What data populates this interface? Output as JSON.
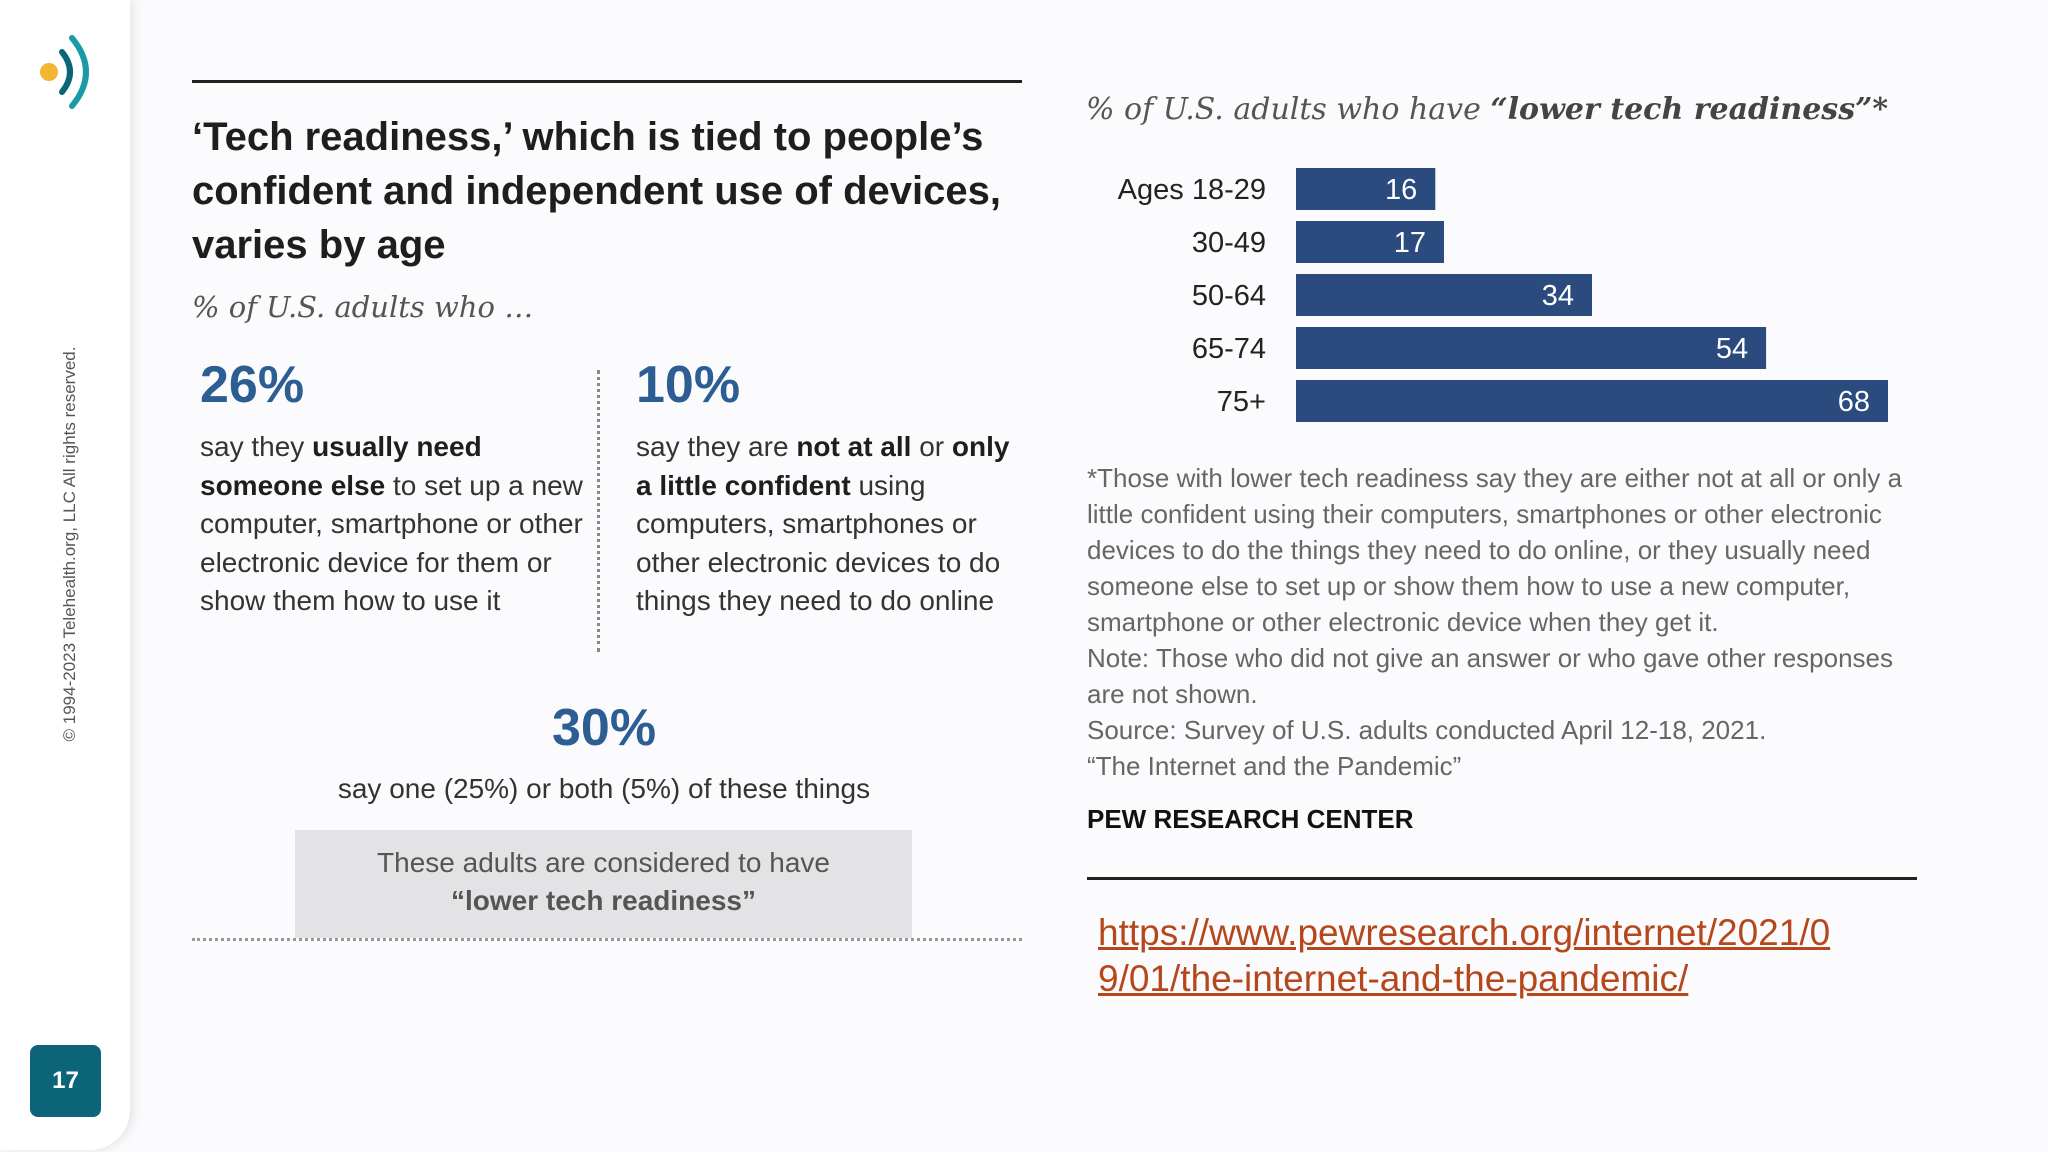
{
  "sidebar": {
    "copyright": "© 1994-2023 Telehealth.org, LLC All rights reserved.",
    "page_number": "17",
    "logo_colors": {
      "dot": "#f2b632",
      "arc1": "#0b6478",
      "arc2": "#1a9aa8"
    }
  },
  "left": {
    "headline": "‘Tech readiness,’ which is tied to people’s confident and independent use of devices, varies by age",
    "subtitle": "% of U.S. adults who …",
    "stat1": {
      "value": "26%",
      "t1": "say they ",
      "b1": "usually need someone else",
      "t2": " to set up a new computer, smartphone or other electronic device for them or show them how to use it"
    },
    "stat2": {
      "value": "10%",
      "t1": "say they are ",
      "b1": "not at all",
      "t2": " or ",
      "b2": "only a little confident",
      "t3": " using computers, smartphones or other electronic devices to do things they need to do online"
    },
    "combined": {
      "value": "30%",
      "text": "say one (25%) or both (5%) of these things"
    },
    "callout": {
      "line1": "These adults are considered to have",
      "line2": "“lower tech readiness”"
    }
  },
  "chart_data": {
    "type": "bar",
    "orientation": "horizontal",
    "title_prefix": "% of U.S. adults who have ",
    "title_emphasis": "“lower tech readiness”*",
    "categories": [
      "Ages 18-29",
      "30-49",
      "50-64",
      "65-74",
      "75+"
    ],
    "values": [
      16,
      17,
      34,
      54,
      68
    ],
    "xlim": [
      0,
      68
    ],
    "bar_color": "#2b4a7e",
    "label_color": "#ffffff",
    "grid": false
  },
  "right": {
    "footnote1": "*Those with lower tech readiness say they are either not at all or only a little confident using their computers, smartphones or other electronic devices to do the things they need to do online, or they usually need someone else to set up or show them how to use a new computer, smartphone or other electronic device when they get it.",
    "footnote2": "Note: Those who did not give an answer or who gave other responses are not shown.",
    "source1": "Source: Survey of U.S. adults conducted April 12-18, 2021.",
    "source2": "“The Internet and the Pandemic”",
    "org": "PEW RESEARCH CENTER",
    "link": "https://www.pewresearch.org/internet/2021/09/01/the-internet-and-the-pandemic/"
  }
}
